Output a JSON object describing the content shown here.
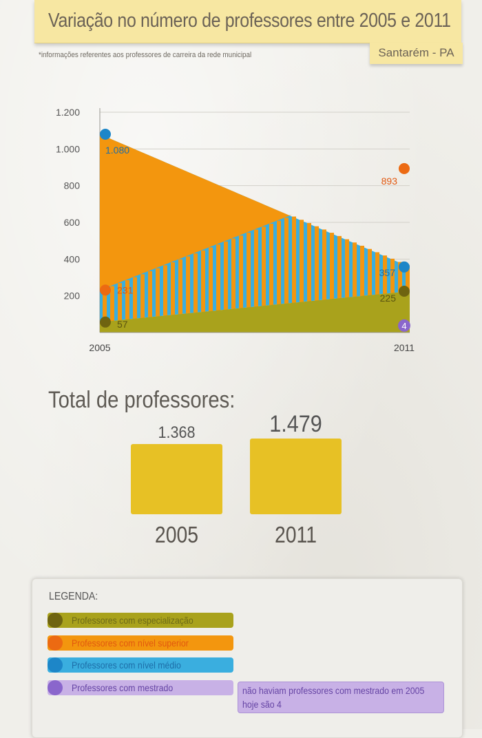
{
  "header": {
    "title": "Variação no número de professores entre 2005 e 2011",
    "footnote": "*informações referentes aos professores de carreira da rede municipal",
    "location": "Santarém - PA"
  },
  "chart_data": {
    "type": "area",
    "title": "",
    "xlabel": "",
    "ylabel": "",
    "x": [
      "2005",
      "2011"
    ],
    "ylim": [
      0,
      1200
    ],
    "yticks": [
      200,
      400,
      600,
      800,
      1000,
      1200
    ],
    "ytick_labels": [
      "200",
      "400",
      "600",
      "800",
      "1.000",
      "1.200"
    ],
    "grid": true,
    "series": [
      {
        "key": "medio",
        "values": [
          1080,
          357
        ],
        "labels": [
          "1.080",
          "357"
        ],
        "color": "#3aaedf",
        "dot_color": "#1d86c8"
      },
      {
        "key": "superior",
        "values": [
          231,
          893
        ],
        "labels": [
          "231",
          "893"
        ],
        "color": "#f3960e",
        "dot_color": "#ec6a12"
      },
      {
        "key": "especializacao",
        "values": [
          57,
          225
        ],
        "labels": [
          "57",
          "225"
        ],
        "color": "#a9a21c",
        "dot_color": "#6f6410"
      },
      {
        "key": "mestrado",
        "values": [
          0,
          4
        ],
        "labels": [
          "",
          "4"
        ],
        "color": "#8a66cc",
        "dot_color": "#8a66cc"
      }
    ]
  },
  "totals": {
    "title": "Total de professores:",
    "items": [
      {
        "year": "2005",
        "value": 1368,
        "label": "1.368"
      },
      {
        "year": "2011",
        "value": 1479,
        "label": "1.479"
      }
    ]
  },
  "legend": {
    "title": "LEGENDA:",
    "items": [
      {
        "label": "Professores com especialização",
        "bar_color": "#a9a21c",
        "dot_color": "#6f6410",
        "text_color": "#6d6a18"
      },
      {
        "label": "Professores com nível superior",
        "bar_color": "#f3960e",
        "dot_color": "#ec6a12",
        "text_color": "#e2580f"
      },
      {
        "label": "Professores com nível médio",
        "bar_color": "#3aaedf",
        "dot_color": "#1d86c8",
        "text_color": "#1d6ea8"
      },
      {
        "label": "Professores com mestrado",
        "bar_color": "#c8b1e6",
        "dot_color": "#8a66cc",
        "text_color": "#6544a4"
      }
    ],
    "note_line1": "não haviam professores com mestrado em 2005",
    "note_line2": "hoje são 4"
  }
}
